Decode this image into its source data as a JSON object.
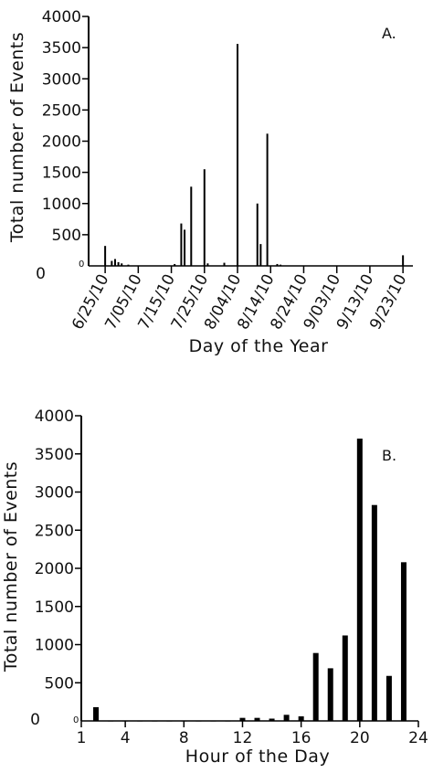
{
  "chart_data": [
    {
      "type": "bar",
      "panel_label": "A.",
      "ylabel": "Total number of Events",
      "xlabel": "Day of the Year",
      "ylim": [
        0,
        4000
      ],
      "y_ticks": [
        0,
        500,
        1000,
        1500,
        2000,
        2500,
        3000,
        3500,
        4000
      ],
      "x_range": [
        "2010-06-20",
        "2010-09-26"
      ],
      "x_ticks": [
        "6/25/10",
        "7/05/10",
        "7/15/10",
        "7/25/10",
        "8/04/10",
        "8/14/10",
        "8/24/10",
        "9/03/10",
        "9/13/10",
        "9/23/10"
      ],
      "tick_dates": [
        "2010-06-25",
        "2010-07-05",
        "2010-07-15",
        "2010-07-25",
        "2010-08-04",
        "2010-08-14",
        "2010-08-24",
        "2010-09-03",
        "2010-09-13",
        "2010-09-23"
      ],
      "zero_label": "0",
      "bars": [
        {
          "date": "2010-06-25",
          "value": 320
        },
        {
          "date": "2010-06-27",
          "value": 80
        },
        {
          "date": "2010-06-28",
          "value": 110
        },
        {
          "date": "2010-06-29",
          "value": 60
        },
        {
          "date": "2010-06-30",
          "value": 40
        },
        {
          "date": "2010-07-02",
          "value": 20
        },
        {
          "date": "2010-07-16",
          "value": 30
        },
        {
          "date": "2010-07-18",
          "value": 680
        },
        {
          "date": "2010-07-19",
          "value": 580
        },
        {
          "date": "2010-07-21",
          "value": 1270
        },
        {
          "date": "2010-07-25",
          "value": 1550
        },
        {
          "date": "2010-07-26",
          "value": 40
        },
        {
          "date": "2010-07-31",
          "value": 50
        },
        {
          "date": "2010-08-04",
          "value": 3560
        },
        {
          "date": "2010-08-10",
          "value": 1000
        },
        {
          "date": "2010-08-11",
          "value": 350
        },
        {
          "date": "2010-08-13",
          "value": 2120
        },
        {
          "date": "2010-08-16",
          "value": 30
        },
        {
          "date": "2010-08-17",
          "value": 20
        },
        {
          "date": "2010-09-23",
          "value": 170
        }
      ]
    },
    {
      "type": "bar",
      "panel_label": "B.",
      "ylabel": "Total number of Events",
      "xlabel": "Hour of the Day",
      "ylim": [
        0,
        4000
      ],
      "xlim": [
        1,
        24
      ],
      "y_ticks": [
        0,
        500,
        1000,
        1500,
        2000,
        2500,
        3000,
        3500,
        4000
      ],
      "x_ticks": [
        1,
        4,
        8,
        12,
        16,
        20,
        24
      ],
      "zero_label": "0",
      "bars": [
        {
          "hour": 2,
          "value": 180
        },
        {
          "hour": 3,
          "value": 5
        },
        {
          "hour": 4,
          "value": 5
        },
        {
          "hour": 5,
          "value": 5
        },
        {
          "hour": 6,
          "value": 5
        },
        {
          "hour": 7,
          "value": 5
        },
        {
          "hour": 8,
          "value": 5
        },
        {
          "hour": 9,
          "value": 5
        },
        {
          "hour": 10,
          "value": 5
        },
        {
          "hour": 11,
          "value": 5
        },
        {
          "hour": 12,
          "value": 40
        },
        {
          "hour": 13,
          "value": 40
        },
        {
          "hour": 14,
          "value": 30
        },
        {
          "hour": 15,
          "value": 80
        },
        {
          "hour": 16,
          "value": 60
        },
        {
          "hour": 17,
          "value": 890
        },
        {
          "hour": 18,
          "value": 690
        },
        {
          "hour": 19,
          "value": 1120
        },
        {
          "hour": 20,
          "value": 3700
        },
        {
          "hour": 21,
          "value": 2830
        },
        {
          "hour": 22,
          "value": 590
        },
        {
          "hour": 23,
          "value": 2080
        }
      ]
    }
  ]
}
